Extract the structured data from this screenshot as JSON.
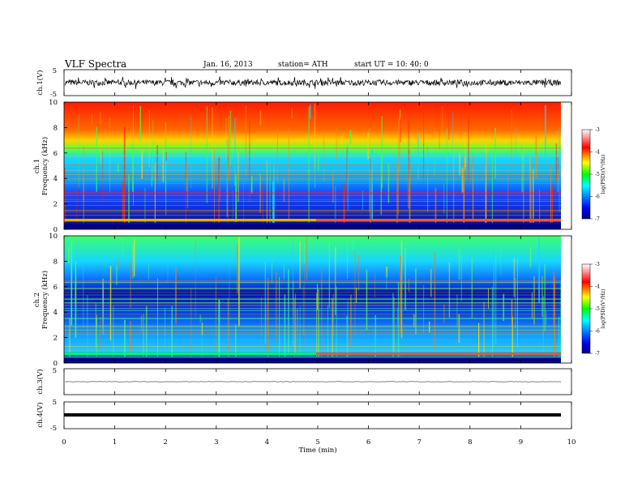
{
  "header": {
    "title": "VLF  Spectra",
    "date": "Jan. 16, 2013",
    "station": "station= ATH",
    "start": "start  UT =   10: 40: 0"
  },
  "chart_data": [
    {
      "type": "line",
      "ylabel": "ch.1(V)",
      "ylim": [
        -5,
        5
      ],
      "yticks": [
        "5",
        "-5"
      ],
      "description_values": "noisy waveform roughly between -1.5 and 1.5 V"
    },
    {
      "type": "heatmap",
      "ylabel_channel": "ch.1",
      "ylabel": "Frequency  (kHz)",
      "ylim": [
        0,
        10
      ],
      "yticks": [
        "0",
        "2",
        "4",
        "6",
        "8",
        "10"
      ],
      "colorbar": {
        "label": "log(PSD)(V²/Hz)",
        "range": [
          -7,
          -3
        ],
        "ticks": [
          "-3",
          "-4",
          "-5",
          "-6",
          "-7"
        ]
      }
    },
    {
      "type": "heatmap",
      "ylabel_channel": "ch.2",
      "ylabel": "Frequency  (kHz)",
      "ylim": [
        0,
        10
      ],
      "yticks": [
        "0",
        "2",
        "4",
        "6",
        "8",
        "10"
      ],
      "colorbar": {
        "label": "log(PSD)(V²/Hz)",
        "range": [
          -7,
          -3
        ],
        "ticks": [
          "-3",
          "-4",
          "-5",
          "-6",
          "-7"
        ]
      }
    },
    {
      "type": "line",
      "ylabel": "ch.3(V)",
      "ylim": [
        -5,
        5
      ],
      "yticks": [
        "5",
        "-5"
      ]
    },
    {
      "type": "line",
      "ylabel": "ch.4(V)",
      "ylim": [
        -5,
        5
      ],
      "yticks": [
        "5",
        "-5"
      ]
    }
  ],
  "xaxis": {
    "label": "Time  (min)",
    "xlim": [
      0,
      10
    ],
    "ticks": [
      "0",
      "1",
      "2",
      "3",
      "4",
      "5",
      "6",
      "7",
      "8",
      "9",
      "10"
    ]
  },
  "colors": {
    "jet": [
      "#000080",
      "#0000ff",
      "#00ffff",
      "#00ff00",
      "#ffff00",
      "#ff0000",
      "#800000"
    ]
  }
}
